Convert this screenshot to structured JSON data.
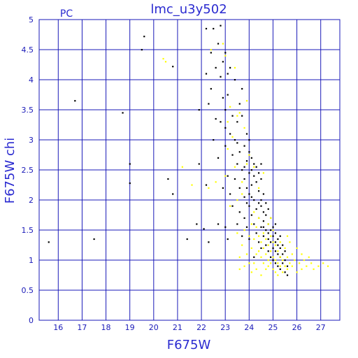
{
  "chart_data": {
    "type": "scatter",
    "title": "lmc_u3y502",
    "tag": "PC",
    "xlabel": "F675W",
    "ylabel": "F675W  chi",
    "xlim": [
      15.2,
      27.8
    ],
    "ylim": [
      0,
      5
    ],
    "xticks": [
      16,
      17,
      18,
      19,
      20,
      21,
      22,
      23,
      24,
      25,
      26,
      27
    ],
    "yticks": [
      0,
      0.5,
      1,
      1.5,
      2,
      2.5,
      3,
      3.5,
      4,
      4.5,
      5
    ],
    "grid": true,
    "grid_color": "#1a1ab8",
    "text_color": "#2a2ad0",
    "series": [
      {
        "color": "#000000",
        "points": [
          [
            15.6,
            1.3
          ],
          [
            16.7,
            3.65
          ],
          [
            17.5,
            1.35
          ],
          [
            18.7,
            3.45
          ],
          [
            19.0,
            2.6
          ],
          [
            19.0,
            2.28
          ],
          [
            19.5,
            4.5
          ],
          [
            19.6,
            4.72
          ],
          [
            20.6,
            2.35
          ],
          [
            20.8,
            4.22
          ],
          [
            20.8,
            2.1
          ],
          [
            21.4,
            1.35
          ],
          [
            21.8,
            1.6
          ],
          [
            21.9,
            3.5
          ],
          [
            21.9,
            2.6
          ],
          [
            22.1,
            1.52
          ],
          [
            22.2,
            2.25
          ],
          [
            22.2,
            4.1
          ],
          [
            22.2,
            4.85
          ],
          [
            22.3,
            3.6
          ],
          [
            22.3,
            1.3
          ],
          [
            22.4,
            4.45
          ],
          [
            22.4,
            3.85
          ],
          [
            22.5,
            4.85
          ],
          [
            22.5,
            3.0
          ],
          [
            22.6,
            4.2
          ],
          [
            22.6,
            3.35
          ],
          [
            22.7,
            4.6
          ],
          [
            22.7,
            2.7
          ],
          [
            22.7,
            1.6
          ],
          [
            22.8,
            4.9
          ],
          [
            22.8,
            4.05
          ],
          [
            22.8,
            3.3
          ],
          [
            22.9,
            2.2
          ],
          [
            22.9,
            3.7
          ],
          [
            22.9,
            4.3
          ],
          [
            23.0,
            2.9
          ],
          [
            23.0,
            3.5
          ],
          [
            23.0,
            4.45
          ],
          [
            23.0,
            3.2
          ],
          [
            23.0,
            1.55
          ],
          [
            23.1,
            3.75
          ],
          [
            23.1,
            2.4
          ],
          [
            23.1,
            4.1
          ],
          [
            23.1,
            1.35
          ],
          [
            23.2,
            3.1
          ],
          [
            23.2,
            2.1
          ],
          [
            23.2,
            4.2
          ],
          [
            23.3,
            2.75
          ],
          [
            23.3,
            3.4
          ],
          [
            23.3,
            1.9
          ],
          [
            23.4,
            3.0
          ],
          [
            23.4,
            2.35
          ],
          [
            23.4,
            4.0
          ],
          [
            23.5,
            2.6
          ],
          [
            23.5,
            3.3
          ],
          [
            23.5,
            1.6
          ],
          [
            23.5,
            2.95
          ],
          [
            23.6,
            2.2
          ],
          [
            23.6,
            3.6
          ],
          [
            23.6,
            1.8
          ],
          [
            23.6,
            2.8
          ],
          [
            23.7,
            2.5
          ],
          [
            23.7,
            3.4
          ],
          [
            23.7,
            1.4
          ],
          [
            23.7,
            3.85
          ],
          [
            23.8,
            2.05
          ],
          [
            23.8,
            2.9
          ],
          [
            23.8,
            2.35
          ],
          [
            23.8,
            1.7
          ],
          [
            23.9,
            2.65
          ],
          [
            23.9,
            3.1
          ],
          [
            23.9,
            2.2
          ],
          [
            23.9,
            1.55
          ],
          [
            24.0,
            2.8
          ],
          [
            24.0,
            2.45
          ],
          [
            24.0,
            1.9
          ],
          [
            24.0,
            2.1
          ],
          [
            24.0,
            3.0
          ],
          [
            24.0,
            1.35
          ],
          [
            24.1,
            2.5
          ],
          [
            24.1,
            2.25
          ],
          [
            24.1,
            2.7
          ],
          [
            24.1,
            1.75
          ],
          [
            24.2,
            2.4
          ],
          [
            24.2,
            2.6
          ],
          [
            24.2,
            2.0
          ],
          [
            24.2,
            1.6
          ],
          [
            24.3,
            2.55
          ],
          [
            24.3,
            2.3
          ],
          [
            24.3,
            1.85
          ],
          [
            24.3,
            1.45
          ],
          [
            24.4,
            2.45
          ],
          [
            24.4,
            2.15
          ],
          [
            24.4,
            1.7
          ],
          [
            24.4,
            1.3
          ],
          [
            24.5,
            2.6
          ],
          [
            24.5,
            2.0
          ],
          [
            24.5,
            1.9
          ],
          [
            24.5,
            1.55
          ],
          [
            24.5,
            2.35
          ],
          [
            24.6,
            1.8
          ],
          [
            24.6,
            1.4
          ],
          [
            24.6,
            2.1
          ],
          [
            24.6,
            1.65
          ],
          [
            24.7,
            1.5
          ],
          [
            24.7,
            1.25
          ],
          [
            24.7,
            1.95
          ],
          [
            24.7,
            1.75
          ],
          [
            24.8,
            1.6
          ],
          [
            24.8,
            1.35
          ],
          [
            24.8,
            1.15
          ],
          [
            24.8,
            1.85
          ],
          [
            24.9,
            1.5
          ],
          [
            24.9,
            1.3
          ],
          [
            24.9,
            1.05
          ],
          [
            24.9,
            1.7
          ],
          [
            25.0,
            1.4
          ],
          [
            25.0,
            1.2
          ],
          [
            25.0,
            1.55
          ],
          [
            25.0,
            1.0
          ],
          [
            25.1,
            1.3
          ],
          [
            25.1,
            1.15
          ],
          [
            25.1,
            1.45
          ],
          [
            25.1,
            0.95
          ],
          [
            25.2,
            1.25
          ],
          [
            25.2,
            1.1
          ],
          [
            25.2,
            1.35
          ],
          [
            25.2,
            0.9
          ],
          [
            25.3,
            1.2
          ],
          [
            25.3,
            1.05
          ],
          [
            25.3,
            0.85
          ],
          [
            25.3,
            1.4
          ],
          [
            25.4,
            1.1
          ],
          [
            25.4,
            0.95
          ],
          [
            25.4,
            1.25
          ],
          [
            25.5,
            0.8
          ],
          [
            25.5,
            1.0
          ],
          [
            25.5,
            1.15
          ],
          [
            25.6,
            0.75
          ],
          [
            25.6,
            0.9
          ],
          [
            25.1,
            1.6
          ],
          [
            24.8,
            1.45
          ],
          [
            24.5,
            1.2
          ],
          [
            24.2,
            1.05
          ],
          [
            23.8,
            2.55
          ],
          [
            23.9,
            1.95
          ],
          [
            24.1,
            2.05
          ],
          [
            24.4,
            1.95
          ],
          [
            24.6,
            1.55
          ]
        ]
      },
      {
        "color": "#ffff00",
        "points": [
          [
            20.4,
            4.35
          ],
          [
            20.5,
            4.3
          ],
          [
            21.2,
            2.55
          ],
          [
            21.6,
            2.25
          ],
          [
            22.3,
            2.2
          ],
          [
            22.4,
            4.5
          ],
          [
            22.6,
            2.3
          ],
          [
            22.9,
            4.6
          ],
          [
            23.0,
            4.4
          ],
          [
            23.1,
            3.3
          ],
          [
            23.2,
            3.55
          ],
          [
            23.1,
            2.85
          ],
          [
            23.0,
            2.4
          ],
          [
            23.2,
            1.9
          ],
          [
            23.3,
            3.05
          ],
          [
            23.4,
            2.55
          ],
          [
            23.4,
            4.2
          ],
          [
            23.5,
            1.45
          ],
          [
            23.5,
            2.0
          ],
          [
            23.5,
            3.4
          ],
          [
            23.6,
            1.05
          ],
          [
            23.6,
            0.85
          ],
          [
            23.7,
            1.25
          ],
          [
            23.7,
            2.3
          ],
          [
            23.8,
            1.5
          ],
          [
            23.8,
            3.2
          ],
          [
            23.8,
            0.9
          ],
          [
            23.9,
            1.1
          ],
          [
            23.9,
            2.6
          ],
          [
            23.9,
            3.65
          ],
          [
            24.0,
            1.4
          ],
          [
            24.0,
            0.95
          ],
          [
            24.0,
            2.75
          ],
          [
            24.1,
            1.2
          ],
          [
            24.1,
            1.6
          ],
          [
            24.1,
            0.8
          ],
          [
            24.2,
            1.35
          ],
          [
            24.2,
            1.8
          ],
          [
            24.2,
            0.95
          ],
          [
            24.3,
            1.55
          ],
          [
            24.3,
            1.1
          ],
          [
            24.3,
            0.85
          ],
          [
            24.4,
            1.4
          ],
          [
            24.4,
            1.15
          ],
          [
            24.4,
            2.2
          ],
          [
            24.5,
            1.05
          ],
          [
            24.5,
            1.3
          ],
          [
            24.5,
            0.75
          ],
          [
            24.6,
            1.2
          ],
          [
            24.6,
            0.95
          ],
          [
            24.6,
            1.45
          ],
          [
            24.7,
            1.1
          ],
          [
            24.7,
            0.85
          ],
          [
            24.7,
            1.35
          ],
          [
            24.8,
            1.0
          ],
          [
            24.8,
            1.25
          ],
          [
            24.8,
            0.9
          ],
          [
            24.9,
            1.15
          ],
          [
            24.9,
            0.95
          ],
          [
            24.9,
            1.4
          ],
          [
            25.0,
            1.05
          ],
          [
            25.0,
            0.85
          ],
          [
            25.0,
            1.3
          ],
          [
            25.1,
            1.0
          ],
          [
            25.1,
            0.8
          ],
          [
            25.1,
            1.25
          ],
          [
            25.2,
            1.15
          ],
          [
            25.2,
            0.95
          ],
          [
            25.2,
            0.75
          ],
          [
            25.3,
            1.05
          ],
          [
            25.3,
            0.9
          ],
          [
            25.4,
            1.0
          ],
          [
            25.4,
            0.8
          ],
          [
            25.5,
            1.2
          ],
          [
            25.5,
            0.9
          ],
          [
            25.6,
            1.05
          ],
          [
            25.6,
            0.85
          ],
          [
            25.7,
            1.3
          ],
          [
            25.7,
            0.95
          ],
          [
            25.8,
            1.1
          ],
          [
            25.8,
            0.9
          ],
          [
            25.9,
            1.0
          ],
          [
            26.0,
            1.2
          ],
          [
            26.0,
            0.8
          ],
          [
            26.1,
            0.95
          ],
          [
            26.2,
            1.1
          ],
          [
            26.2,
            0.85
          ],
          [
            26.3,
            1.0
          ],
          [
            26.4,
            0.9
          ],
          [
            26.5,
            1.05
          ],
          [
            26.6,
            0.95
          ],
          [
            26.7,
            0.85
          ],
          [
            26.9,
            0.9
          ],
          [
            27.1,
            0.95
          ],
          [
            27.3,
            0.9
          ],
          [
            24.6,
            2.45
          ],
          [
            24.4,
            1.7
          ],
          [
            24.8,
            1.6
          ],
          [
            25.0,
            1.5
          ],
          [
            23.6,
            3.45
          ],
          [
            23.7,
            2.1
          ],
          [
            24.2,
            2.55
          ],
          [
            25.3,
            1.3
          ],
          [
            25.6,
            1.4
          ],
          [
            24.9,
            1.7
          ]
        ]
      }
    ]
  }
}
